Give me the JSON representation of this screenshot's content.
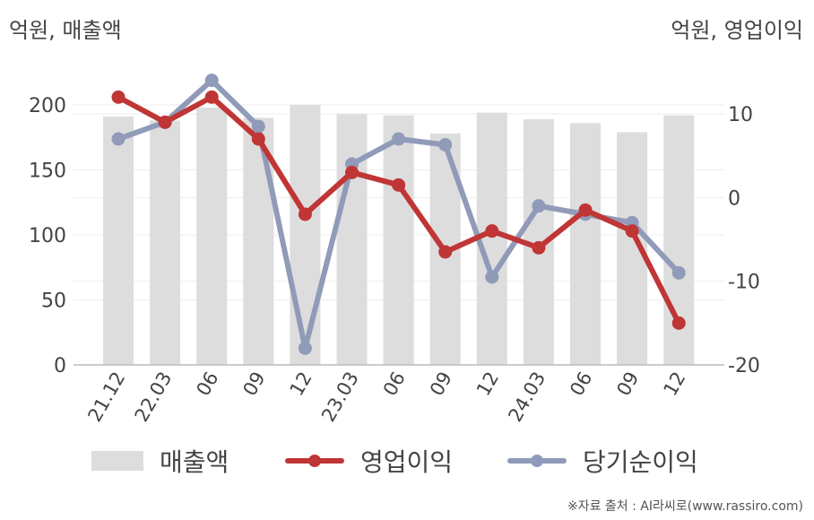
{
  "unit_left": "억원, 매출액",
  "unit_right": "억원, 영업이익",
  "source": "※자료 출처 : AI라씨로(www.rassiro.com)",
  "colors": {
    "revenue": "#dddddd",
    "operating_profit": "#c03535",
    "net_income": "#8f9bb8"
  },
  "chart_data": {
    "type": "bar",
    "categories": [
      "21.12",
      "22.03",
      "06",
      "09",
      "12",
      "23.03",
      "06",
      "09",
      "12",
      "24.03",
      "06",
      "09",
      "12"
    ],
    "series": [
      {
        "name": "매출액",
        "type": "bar",
        "axis": "left",
        "values": [
          191,
          188,
          198,
          190,
          200,
          193,
          192,
          178,
          194,
          189,
          186,
          179,
          192
        ]
      },
      {
        "name": "영업이익",
        "type": "line",
        "axis": "right",
        "values": [
          12,
          9,
          12,
          7,
          -2,
          3,
          1.5,
          -6.5,
          -4,
          -6,
          -1.5,
          -4,
          -15
        ]
      },
      {
        "name": "당기순이익",
        "type": "line",
        "axis": "right",
        "values": [
          7,
          9,
          14,
          8.5,
          -18,
          4,
          7,
          6.3,
          -9.5,
          -1,
          -2,
          -3,
          -9
        ]
      }
    ],
    "y_left": {
      "ticks": [
        0,
        50,
        100,
        150,
        200
      ],
      "range": [
        0,
        200
      ]
    },
    "y_right": {
      "ticks": [
        10,
        0,
        -10,
        -20
      ],
      "range": [
        -20,
        10
      ]
    },
    "legend_position": "bottom",
    "grid": true
  }
}
